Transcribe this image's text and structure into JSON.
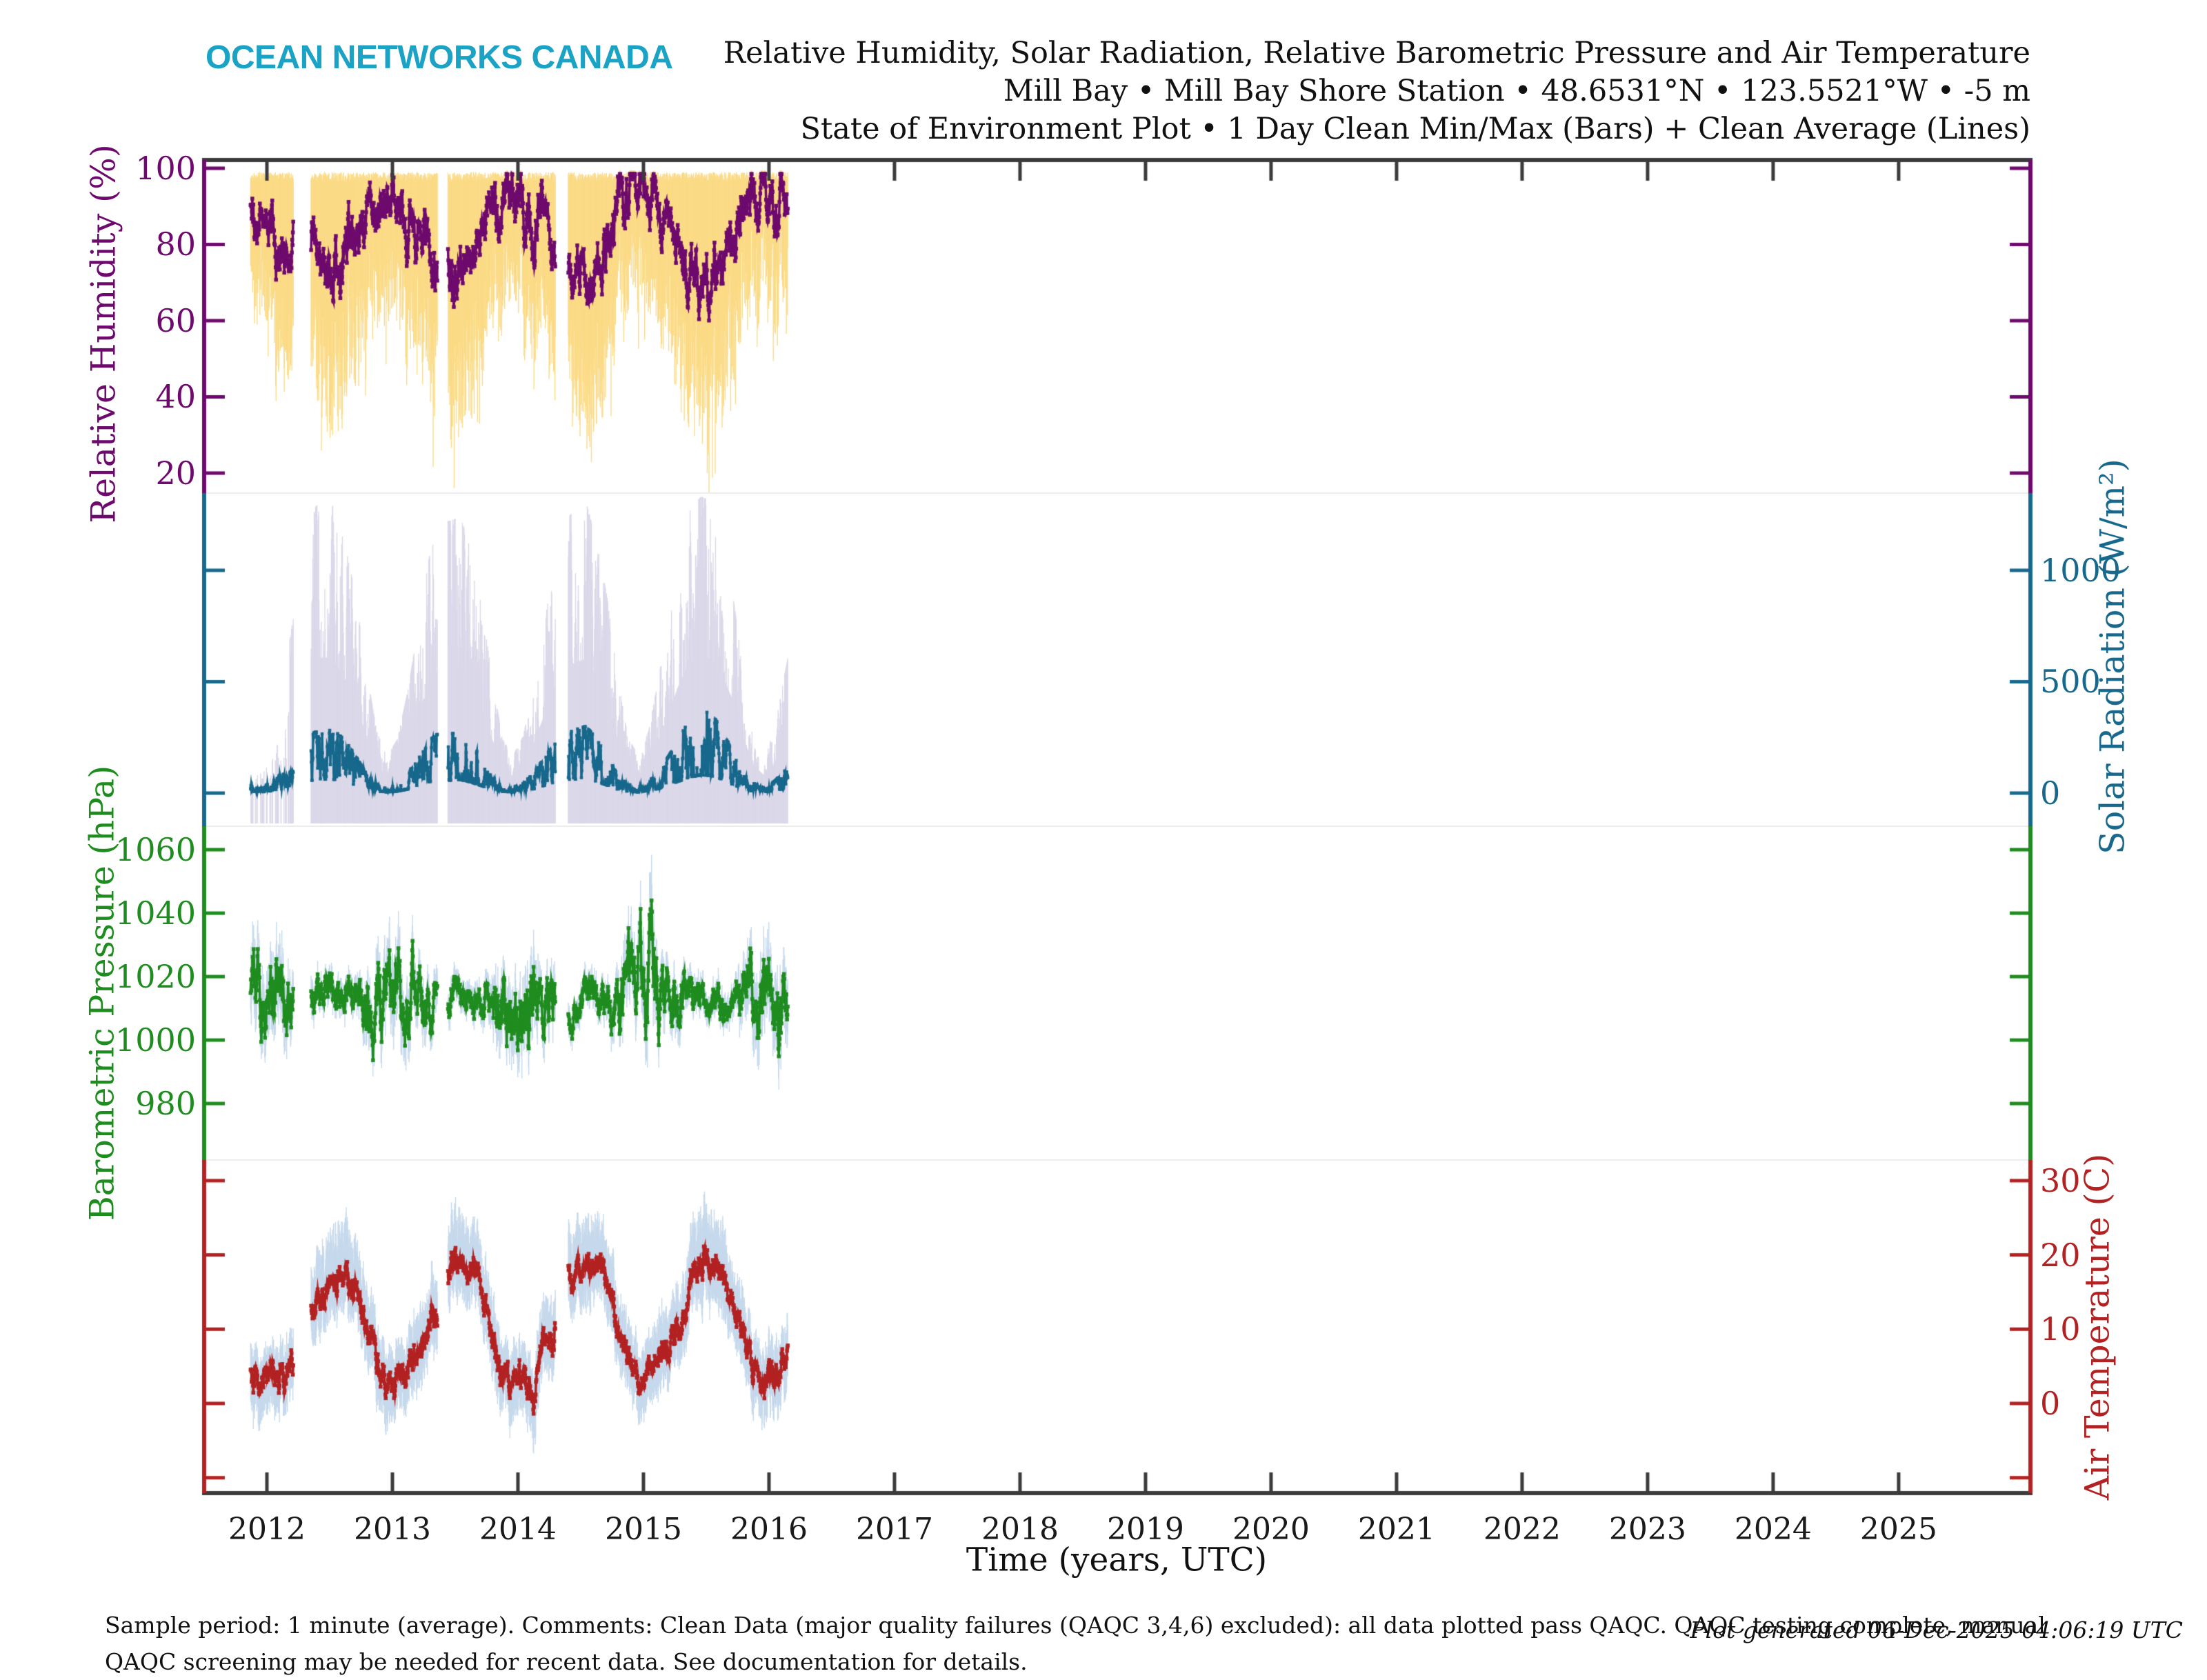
{
  "brand": {
    "logo_text": "OCEAN NETWORKS CANADA",
    "logo_color": "#1BA3C6"
  },
  "header": {
    "title_line1": "Relative Humidity, Solar Radiation, Relative Barometric Pressure and Air Temperature",
    "title_line2": "Mill Bay • Mill Bay Shore Station • 48.6531°N • 123.5521°W • -5 m",
    "title_line3": "State of Environment Plot • 1 Day Clean Min/Max (Bars) + Clean Average (Lines)"
  },
  "footer": {
    "line1": "Sample period: 1 minute (average). Comments: Clean Data (major quality failures (QAQC 3,4,6) excluded): all data plotted pass QAQC. QAQC testing complete, manual",
    "line2": "QAQC screening may be needed for recent data. See documentation for details.",
    "generated": "Plot generated 06-Dec-2025 04:06:19 UTC"
  },
  "chart_data": {
    "type": "line",
    "title": "Relative Humidity, Solar Radiation, Relative Barometric Pressure and Air Temperature — Mill Bay Shore Station",
    "xlabel": "Time (years, UTC)",
    "x_range": [
      2011.5,
      2026.05
    ],
    "x_ticks": [
      2012,
      2013,
      2014,
      2015,
      2016,
      2017,
      2018,
      2019,
      2020,
      2021,
      2022,
      2023,
      2024,
      2025
    ],
    "data_start": 2011.87,
    "data_end": 2016.15,
    "gaps": [
      [
        2012.21,
        2012.35
      ],
      [
        2013.36,
        2013.44
      ],
      [
        2014.3,
        2014.4
      ]
    ],
    "frame_color": "#3B3B3B",
    "separator_color": "#ECECEC",
    "monthly_t0": 2011.875,
    "panels": [
      {
        "id": "humidity",
        "ylabel": "Relative Humidity (%)",
        "line_color": "#6E0A6E",
        "bar_color": "#FBDB87",
        "yticks": [
          20,
          40,
          60,
          80,
          100
        ],
        "ytick_labels": [
          20,
          40,
          60,
          80,
          100
        ],
        "label_side": "left",
        "value_top": 102.17,
        "value_bottom": 14.75,
        "monthly": {
          "avg": [
            90,
            89,
            86,
            81,
            83,
            79,
            76,
            74,
            74,
            77,
            81,
            88,
            92,
            91,
            89,
            85,
            83,
            79,
            75,
            73,
            70,
            75,
            82,
            90,
            93,
            90,
            89,
            86,
            87,
            81,
            77,
            73,
            70,
            73,
            79,
            87,
            92,
            93,
            93,
            89,
            85,
            79,
            74,
            70,
            68,
            74,
            81,
            88,
            92,
            94,
            93,
            90,
            88
          ],
          "lo": [
            72,
            70,
            62,
            55,
            57,
            50,
            45,
            42,
            40,
            45,
            52,
            60,
            68,
            66,
            64,
            58,
            55,
            48,
            42,
            40,
            36,
            42,
            52,
            65,
            70,
            66,
            64,
            60,
            60,
            52,
            46,
            40,
            35,
            38,
            48,
            60,
            68,
            70,
            70,
            62,
            58,
            48,
            42,
            36,
            33,
            40,
            50,
            62,
            68,
            72,
            70,
            64,
            60
          ],
          "hi": 99
        }
      },
      {
        "id": "solar",
        "ylabel": "Solar Radiation (W/m²)",
        "line_color": "#17688C",
        "bar_color": "#DBD8E9",
        "yticks": [
          0,
          500,
          1000
        ],
        "ytick_labels": [
          0,
          500,
          1000
        ],
        "label_side": "right",
        "value_top": 1346.7,
        "value_bottom": -148.6,
        "sparse_until": 2012.18,
        "monthly": {
          "avg": [
            25,
            18,
            35,
            65,
            115,
            160,
            190,
            200,
            195,
            165,
            115,
            60,
            28,
            18,
            30,
            60,
            110,
            165,
            190,
            185,
            195,
            160,
            110,
            55,
            25,
            18,
            30,
            62,
            108,
            158,
            185,
            200,
            210,
            170,
            118,
            58,
            28,
            18,
            35,
            70,
            120,
            180,
            235,
            260,
            250,
            200,
            130,
            62,
            30,
            20,
            35,
            70,
            115
          ],
          "lo": 0,
          "hi": [
            180,
            140,
            260,
            450,
            700,
            950,
            1150,
            1200,
            1150,
            1000,
            800,
            500,
            250,
            150,
            220,
            420,
            680,
            950,
            1100,
            1100,
            1120,
            980,
            760,
            480,
            220,
            150,
            230,
            430,
            680,
            930,
            1100,
            1150,
            1180,
            1020,
            800,
            480,
            230,
            150,
            250,
            480,
            720,
            980,
            1150,
            1200,
            1180,
            1050,
            820,
            500,
            240,
            160,
            250,
            480,
            700
          ]
        }
      },
      {
        "id": "pressure",
        "ylabel": "Barometric Pressure (hPa)",
        "line_color": "#1F8C1F",
        "bar_color": "#C6D9EC",
        "yticks": [
          980,
          1000,
          1020,
          1040,
          1060
        ],
        "ytick_labels": [
          980,
          1000,
          1020,
          1040,
          1060
        ],
        "label_side": "left",
        "value_top": 1067.4,
        "value_bottom": 962.2,
        "monthly": {
          "avg": [
            1014,
            1016,
            1015,
            1012,
            1010,
            1012,
            1013,
            1012,
            1014,
            1014,
            1013,
            1012,
            1010,
            1012,
            1016,
            1013,
            1011,
            1012,
            1012,
            1011,
            1013,
            1012,
            1012,
            1014,
            1010,
            1011,
            1010,
            1008,
            1010,
            1012,
            1012,
            1011,
            1014,
            1013,
            1012,
            1012,
            1014,
            1020,
            1022,
            1016,
            1012,
            1013,
            1012,
            1012,
            1013,
            1012,
            1011,
            1012,
            1010,
            1010,
            1012,
            1010,
            1012
          ],
          "lo": [
            1000,
            1002,
            1001,
            998,
            1000,
            1002,
            1007,
            1006,
            1008,
            1008,
            1007,
            1002,
            996,
            998,
            1002,
            999,
            1001,
            1002,
            1006,
            1005,
            1007,
            1006,
            1006,
            1004,
            996,
            997,
            996,
            994,
            1000,
            1002,
            1006,
            1005,
            1008,
            1007,
            1006,
            1002,
            1000,
            1006,
            1008,
            1002,
            1002,
            1003,
            1006,
            1006,
            1007,
            1006,
            1005,
            1002,
            996,
            996,
            998,
            996,
            1002
          ],
          "hi": [
            1028,
            1030,
            1029,
            1026,
            1020,
            1022,
            1019,
            1018,
            1020,
            1020,
            1019,
            1022,
            1024,
            1026,
            1030,
            1027,
            1021,
            1022,
            1018,
            1017,
            1019,
            1018,
            1018,
            1024,
            1024,
            1025,
            1024,
            1022,
            1020,
            1022,
            1018,
            1017,
            1020,
            1019,
            1018,
            1022,
            1028,
            1034,
            1045,
            1030,
            1022,
            1023,
            1018,
            1018,
            1019,
            1018,
            1017,
            1022,
            1024,
            1024,
            1026,
            1024,
            1022
          ]
        }
      },
      {
        "id": "temperature",
        "ylabel": "Air Temperature (C)",
        "line_color": "#B32222",
        "bar_color": "#C6D9EC",
        "yticks": [
          -10,
          0,
          10,
          20,
          30
        ],
        "ytick_labels": [
          0,
          10,
          20,
          30
        ],
        "label_side": "right",
        "value_top": 32.78,
        "value_bottom": -12.07,
        "monthly": {
          "avg": [
            4,
            3,
            4,
            4,
            6,
            9,
            12,
            15,
            17,
            18,
            15,
            10,
            6,
            3,
            3,
            5,
            7,
            10,
            14,
            17,
            19,
            18,
            15,
            9,
            4,
            1,
            4,
            2,
            7,
            10,
            14,
            17,
            20,
            19,
            16,
            11,
            6,
            4,
            5,
            6,
            8,
            10,
            15,
            19,
            20,
            19,
            14,
            10,
            5,
            3,
            4,
            6,
            7
          ],
          "lo": [
            -1,
            -3,
            -1,
            -1,
            1,
            4,
            7,
            10,
            12,
            13,
            10,
            5,
            0,
            -3,
            -2,
            0,
            2,
            5,
            9,
            12,
            14,
            13,
            10,
            4,
            -1,
            -5,
            -1,
            -4,
            2,
            5,
            9,
            12,
            14,
            14,
            11,
            6,
            1,
            -1,
            0,
            1,
            3,
            5,
            10,
            13,
            14,
            13,
            9,
            5,
            -1,
            -2,
            -1,
            1,
            2
          ],
          "hi": [
            8,
            7,
            8,
            9,
            11,
            15,
            19,
            22,
            25,
            26,
            22,
            16,
            11,
            8,
            8,
            10,
            13,
            16,
            21,
            24,
            26,
            25,
            21,
            15,
            9,
            6,
            9,
            7,
            13,
            16,
            21,
            24,
            27,
            26,
            22,
            17,
            11,
            9,
            10,
            12,
            14,
            16,
            22,
            27,
            28,
            26,
            20,
            16,
            10,
            8,
            9,
            11,
            13
          ]
        }
      }
    ]
  }
}
